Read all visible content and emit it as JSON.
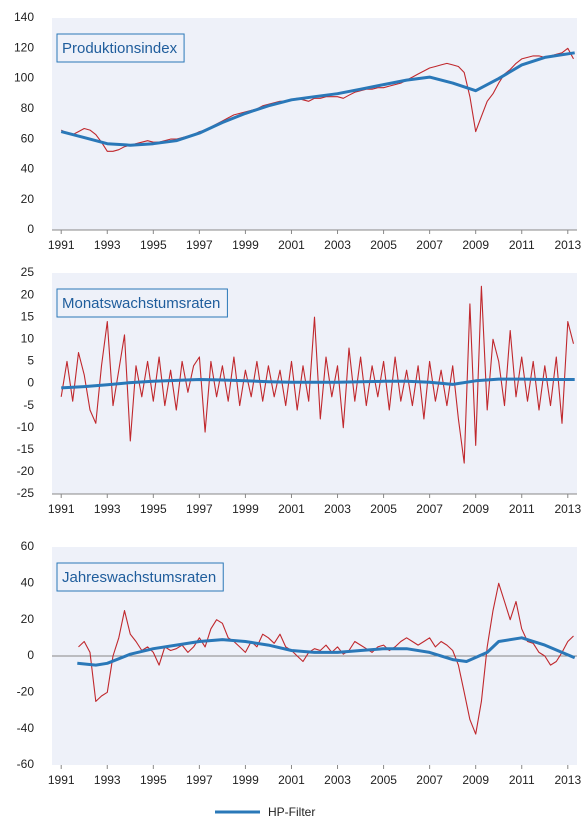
{
  "legend": {
    "label": "HP-Filter",
    "color": "#2a78b8"
  },
  "chart_data": [
    {
      "type": "line",
      "title": "Produktionsindex",
      "xlim": [
        1990.6,
        2013.4
      ],
      "xticks": [
        1991,
        1993,
        1995,
        1997,
        1999,
        2001,
        2003,
        2005,
        2007,
        2009,
        2011,
        2013
      ],
      "ylim": [
        0,
        140
      ],
      "yticks": [
        0,
        20,
        40,
        60,
        80,
        100,
        120,
        140
      ],
      "series": [
        {
          "color": "#c0282d",
          "x": [
            1991,
            1991.25,
            1991.5,
            1991.75,
            1992,
            1992.25,
            1992.5,
            1992.75,
            1993,
            1993.25,
            1993.5,
            1993.75,
            1994,
            1994.25,
            1994.5,
            1994.75,
            1995,
            1995.25,
            1995.5,
            1995.75,
            1996,
            1996.25,
            1996.5,
            1996.75,
            1997,
            1997.25,
            1997.5,
            1997.75,
            1998,
            1998.25,
            1998.5,
            1998.75,
            1999,
            1999.25,
            1999.5,
            1999.75,
            2000,
            2000.25,
            2000.5,
            2000.75,
            2001,
            2001.25,
            2001.5,
            2001.75,
            2002,
            2002.25,
            2002.5,
            2002.75,
            2003,
            2003.25,
            2003.5,
            2003.75,
            2004,
            2004.25,
            2004.5,
            2004.75,
            2005,
            2005.25,
            2005.5,
            2005.75,
            2006,
            2006.25,
            2006.5,
            2006.75,
            2007,
            2007.25,
            2007.5,
            2007.75,
            2008,
            2008.25,
            2008.5,
            2008.75,
            2009,
            2009.25,
            2009.5,
            2009.75,
            2010,
            2010.25,
            2010.5,
            2010.75,
            2011,
            2011.25,
            2011.5,
            2011.75,
            2012,
            2012.25,
            2012.5,
            2012.75,
            2013,
            2013.25
          ],
          "values": [
            66,
            64,
            63,
            65,
            67,
            66,
            63,
            58,
            52,
            52,
            53,
            55,
            56,
            57,
            58,
            59,
            58,
            58,
            59,
            60,
            60,
            61,
            62,
            63,
            65,
            66,
            68,
            70,
            72,
            74,
            76,
            77,
            78,
            79,
            80,
            82,
            83,
            84,
            85,
            85,
            86,
            87,
            86,
            85,
            87,
            87,
            88,
            88,
            88,
            87,
            89,
            91,
            92,
            93,
            93,
            94,
            94,
            95,
            96,
            97,
            99,
            101,
            103,
            105,
            107,
            108,
            109,
            110,
            109,
            108,
            104,
            88,
            65,
            75,
            85,
            90,
            97,
            103,
            106,
            110,
            113,
            114,
            115,
            115,
            114,
            115,
            116,
            117,
            120,
            113
          ]
        },
        {
          "color": "#2a78b8",
          "x": [
            1991,
            1992,
            1993,
            1994,
            1995,
            1996,
            1997,
            1998,
            1999,
            2000,
            2001,
            2002,
            2003,
            2004,
            2005,
            2006,
            2007,
            2008,
            2009,
            2010,
            2011,
            2012,
            2013.3
          ],
          "values": [
            65,
            61,
            57,
            56,
            57,
            59,
            64,
            71,
            77,
            82,
            86,
            88,
            90,
            93,
            96,
            99,
            101,
            97,
            92,
            100,
            109,
            114,
            117
          ]
        }
      ]
    },
    {
      "type": "line",
      "title": "Monatswachstumsraten",
      "xlim": [
        1990.6,
        2013.4
      ],
      "xticks": [
        1991,
        1993,
        1995,
        1997,
        1999,
        2001,
        2003,
        2005,
        2007,
        2009,
        2011,
        2013
      ],
      "ylim": [
        -25,
        25
      ],
      "yticks": [
        -25,
        -20,
        -15,
        -10,
        -5,
        0,
        5,
        10,
        15,
        20,
        25
      ],
      "series": [
        {
          "color": "#c0282d",
          "x": [
            1991,
            1991.25,
            1991.5,
            1991.75,
            1992,
            1992.25,
            1992.5,
            1992.75,
            1993,
            1993.25,
            1993.5,
            1993.75,
            1994,
            1994.25,
            1994.5,
            1994.75,
            1995,
            1995.25,
            1995.5,
            1995.75,
            1996,
            1996.25,
            1996.5,
            1996.75,
            1997,
            1997.25,
            1997.5,
            1997.75,
            1998,
            1998.25,
            1998.5,
            1998.75,
            1999,
            1999.25,
            1999.5,
            1999.75,
            2000,
            2000.25,
            2000.5,
            2000.75,
            2001,
            2001.25,
            2001.5,
            2001.75,
            2002,
            2002.25,
            2002.5,
            2002.75,
            2003,
            2003.25,
            2003.5,
            2003.75,
            2004,
            2004.25,
            2004.5,
            2004.75,
            2005,
            2005.25,
            2005.5,
            2005.75,
            2006,
            2006.25,
            2006.5,
            2006.75,
            2007,
            2007.25,
            2007.5,
            2007.75,
            2008,
            2008.25,
            2008.5,
            2008.75,
            2009,
            2009.25,
            2009.5,
            2009.75,
            2010,
            2010.25,
            2010.5,
            2010.75,
            2011,
            2011.25,
            2011.5,
            2011.75,
            2012,
            2012.25,
            2012.5,
            2012.75,
            2013,
            2013.25
          ],
          "values": [
            -3,
            5,
            -4,
            7,
            2,
            -6,
            -9,
            4,
            14,
            -5,
            3,
            11,
            -13,
            4,
            -3,
            5,
            -4,
            6,
            -5,
            3,
            -6,
            5,
            -2,
            4,
            6,
            -11,
            5,
            -3,
            4,
            -4,
            6,
            -5,
            3,
            -3,
            5,
            -4,
            4,
            -3,
            3,
            -5,
            5,
            -6,
            4,
            -4,
            15,
            -8,
            6,
            -3,
            4,
            -10,
            8,
            -4,
            6,
            -5,
            4,
            -3,
            5,
            -6,
            6,
            -4,
            3,
            -5,
            4,
            -8,
            5,
            -4,
            3,
            -5,
            4,
            -8,
            -18,
            18,
            -14,
            22,
            -6,
            10,
            5,
            -5,
            12,
            -3,
            6,
            -4,
            5,
            -6,
            4,
            -5,
            6,
            -9,
            14,
            9
          ]
        },
        {
          "color": "#2a78b8",
          "x": [
            1991,
            1992,
            1993,
            1994,
            1995,
            1996,
            1997,
            1998,
            1999,
            2000,
            2001,
            2002,
            2003,
            2004,
            2005,
            2006,
            2007,
            2008,
            2009,
            2010,
            2011,
            2012,
            2013.3
          ],
          "values": [
            -1,
            -0.7,
            -0.3,
            0.2,
            0.5,
            0.7,
            0.9,
            0.8,
            0.6,
            0.4,
            0.3,
            0.3,
            0.3,
            0.4,
            0.5,
            0.5,
            0.3,
            -0.2,
            0.6,
            1,
            1,
            0.9,
            0.9
          ]
        }
      ]
    },
    {
      "type": "line",
      "title": "Jahreswachstumsraten",
      "xlim": [
        1990.6,
        2013.4
      ],
      "xticks": [
        1991,
        1993,
        1995,
        1997,
        1999,
        2001,
        2003,
        2005,
        2007,
        2009,
        2011,
        2013
      ],
      "ylim": [
        -60,
        60
      ],
      "yticks": [
        -60,
        -40,
        -20,
        0,
        20,
        40,
        60
      ],
      "series": [
        {
          "color": "#c0282d",
          "x": [
            1991.75,
            1992,
            1992.25,
            1992.5,
            1992.75,
            1993,
            1993.25,
            1993.5,
            1993.75,
            1994,
            1994.25,
            1994.5,
            1994.75,
            1995,
            1995.25,
            1995.5,
            1995.75,
            1996,
            1996.25,
            1996.5,
            1996.75,
            1997,
            1997.25,
            1997.5,
            1997.75,
            1998,
            1998.25,
            1998.5,
            1998.75,
            1999,
            1999.25,
            1999.5,
            1999.75,
            2000,
            2000.25,
            2000.5,
            2000.75,
            2001,
            2001.25,
            2001.5,
            2001.75,
            2002,
            2002.25,
            2002.5,
            2002.75,
            2003,
            2003.25,
            2003.5,
            2003.75,
            2004,
            2004.25,
            2004.5,
            2004.75,
            2005,
            2005.25,
            2005.5,
            2005.75,
            2006,
            2006.25,
            2006.5,
            2006.75,
            2007,
            2007.25,
            2007.5,
            2007.75,
            2008,
            2008.25,
            2008.5,
            2008.75,
            2009,
            2009.25,
            2009.5,
            2009.75,
            2010,
            2010.25,
            2010.5,
            2010.75,
            2011,
            2011.25,
            2011.5,
            2011.75,
            2012,
            2012.25,
            2012.5,
            2012.75,
            2013,
            2013.25
          ],
          "values": [
            5,
            8,
            2,
            -25,
            -22,
            -20,
            0,
            10,
            25,
            12,
            8,
            3,
            5,
            2,
            -5,
            5,
            3,
            4,
            6,
            2,
            5,
            10,
            5,
            15,
            20,
            18,
            10,
            8,
            5,
            2,
            8,
            5,
            12,
            10,
            7,
            12,
            5,
            3,
            0,
            -3,
            2,
            4,
            3,
            6,
            2,
            5,
            1,
            3,
            8,
            6,
            4,
            2,
            5,
            6,
            3,
            5,
            8,
            10,
            8,
            6,
            8,
            10,
            5,
            8,
            6,
            3,
            -5,
            -20,
            -35,
            -43,
            -25,
            5,
            25,
            40,
            30,
            20,
            30,
            15,
            8,
            7,
            2,
            0,
            -5,
            -3,
            2,
            8,
            11
          ]
        },
        {
          "color": "#2a78b8",
          "x": [
            1991.7,
            1992.5,
            1993,
            1994,
            1995,
            1996,
            1997,
            1998,
            1999,
            2000,
            2001,
            2002,
            2003,
            2004,
            2005,
            2006,
            2007,
            2008,
            2008.6,
            2009.5,
            2010,
            2011,
            2012,
            2013.3
          ],
          "values": [
            -4,
            -5,
            -4,
            1,
            4,
            6,
            8,
            9,
            8,
            6,
            3,
            2,
            2,
            3,
            4,
            4,
            2,
            -2,
            -3,
            2,
            8,
            10,
            6,
            -1
          ]
        }
      ]
    }
  ]
}
